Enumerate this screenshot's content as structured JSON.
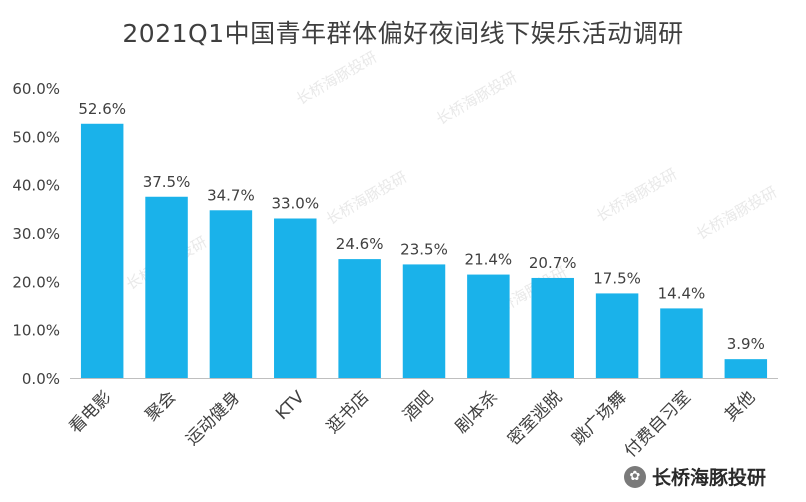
{
  "chart_data": {
    "type": "bar",
    "title": "2021Q1中国青年群体偏好夜间线下娱乐活动调研",
    "categories": [
      "看电影",
      "聚会",
      "运动健身",
      "KTV",
      "逛书店",
      "酒吧",
      "剧本杀",
      "密室逃脱",
      "跳广场舞",
      "付费自习室",
      "其他"
    ],
    "values": [
      52.6,
      37.5,
      34.7,
      33.0,
      24.6,
      23.5,
      21.4,
      20.7,
      17.5,
      14.4,
      3.9
    ],
    "value_labels": [
      "52.6%",
      "37.5%",
      "34.7%",
      "33.0%",
      "24.6%",
      "23.5%",
      "21.4%",
      "20.7%",
      "17.5%",
      "14.4%",
      "3.9%"
    ],
    "ylim": [
      0,
      60
    ],
    "yticks": [
      0,
      10,
      20,
      30,
      40,
      50,
      60
    ],
    "ytick_labels": [
      "0.0%",
      "10.0%",
      "20.0%",
      "30.0%",
      "40.0%",
      "50.0%",
      "60.0%"
    ],
    "xlabel": "",
    "ylabel": "",
    "grid": false,
    "bar_color": "#1ab2ea"
  },
  "watermark": "长桥海豚投研",
  "brand": {
    "name": "长桥海豚投研",
    "logo_glyph": "✿"
  }
}
